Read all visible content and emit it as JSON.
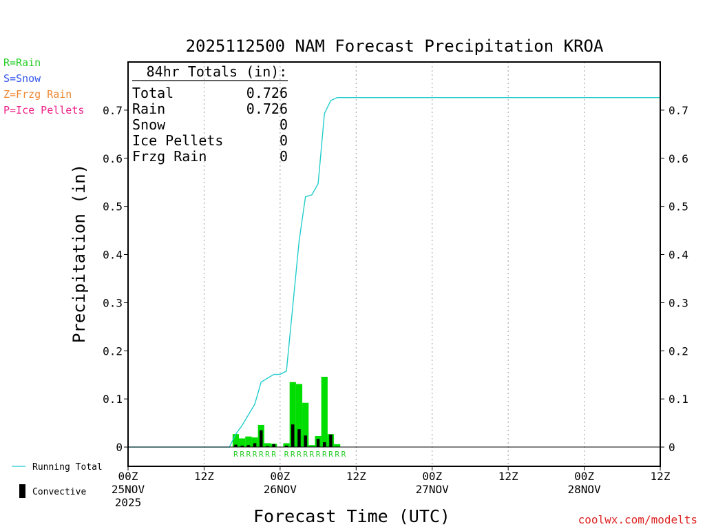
{
  "title": "2025112500 NAM Forecast Precipitation KROA",
  "credit": "coolwx.com/modelts",
  "ptype_legend": [
    {
      "label": "R=Rain",
      "color": "#22cc22"
    },
    {
      "label": "S=Snow",
      "color": "#3355ee"
    },
    {
      "label": "Z=Frzg Rain",
      "color": "#ee8833"
    },
    {
      "label": "P=Ice Pellets",
      "color": "#ee2288"
    }
  ],
  "series_legend": {
    "running_total": {
      "label": "Running Total",
      "color": "#22cccc"
    },
    "convective": {
      "label": "Convective",
      "color": "#000000"
    }
  },
  "totals_box": {
    "header": "84hr Totals (in):",
    "rows": [
      {
        "label": "Total",
        "value": "0.726"
      },
      {
        "label": "Rain",
        "value": "0.726"
      },
      {
        "label": "Snow",
        "value": "0"
      },
      {
        "label": "Ice Pellets",
        "value": "0"
      },
      {
        "label": "Frzg Rain",
        "value": "0"
      }
    ]
  },
  "chart_data": {
    "type": "bar",
    "xlabel": "Forecast Time (UTC)",
    "ylabel": "Precipitation (in)",
    "x_unit": "forecast hour",
    "xlim": [
      0,
      84
    ],
    "ylim": [
      -0.04,
      0.8
    ],
    "yticks": [
      0,
      0.1,
      0.2,
      0.3,
      0.4,
      0.5,
      0.6,
      0.7
    ],
    "ytick_labels": [
      "0",
      "0.1",
      "0.2",
      "0.3",
      "0.4",
      "0.5",
      "0.6",
      "0.7"
    ],
    "xticks": [
      {
        "x": 0,
        "lines": [
          "00Z",
          "25NOV",
          "2025"
        ]
      },
      {
        "x": 12,
        "lines": [
          "12Z"
        ]
      },
      {
        "x": 24,
        "lines": [
          "00Z",
          "26NOV"
        ]
      },
      {
        "x": 36,
        "lines": [
          "12Z"
        ]
      },
      {
        "x": 48,
        "lines": [
          "00Z",
          "27NOV"
        ]
      },
      {
        "x": 60,
        "lines": [
          "12Z"
        ]
      },
      {
        "x": 72,
        "lines": [
          "00Z",
          "28NOV"
        ]
      },
      {
        "x": 84,
        "lines": [
          "12Z"
        ]
      }
    ],
    "grid": "vertical-dotted",
    "series": [
      {
        "name": "Running Total",
        "kind": "line",
        "x": [
          0,
          16,
          17,
          18,
          19,
          20,
          21,
          22,
          23,
          24,
          25,
          26,
          27,
          28,
          29,
          30,
          31,
          32,
          33,
          34,
          35,
          84
        ],
        "y": [
          0,
          0,
          0.027,
          0.045,
          0.067,
          0.089,
          0.135,
          0.143,
          0.151,
          0.151,
          0.158,
          0.293,
          0.428,
          0.52,
          0.524,
          0.547,
          0.693,
          0.72,
          0.726,
          0.726,
          0.726,
          0.726
        ]
      },
      {
        "name": "Rain",
        "kind": "bar",
        "x": [
          17,
          18,
          19,
          20,
          21,
          22,
          23,
          24,
          25,
          26,
          27,
          28,
          29,
          30,
          31,
          32,
          33,
          34
        ],
        "y": [
          0.027,
          0.018,
          0.022,
          0.02,
          0.046,
          0.008,
          0.007,
          0.0,
          0.008,
          0.135,
          0.131,
          0.092,
          0.004,
          0.023,
          0.146,
          0.027,
          0.006,
          0.0
        ]
      },
      {
        "name": "Convective",
        "kind": "bar",
        "x": [
          17,
          18,
          19,
          20,
          21,
          22,
          23,
          24,
          25,
          26,
          27,
          28,
          29,
          30,
          31,
          32,
          33,
          34
        ],
        "y": [
          0.005,
          0.003,
          0.004,
          0.008,
          0.035,
          0.002,
          0.006,
          0.0,
          0.003,
          0.047,
          0.037,
          0.024,
          0.001,
          0.017,
          0.01,
          0.026,
          0.001,
          0.0
        ]
      }
    ],
    "ptype_markers": {
      "text": "R",
      "x": [
        17,
        18,
        19,
        20,
        21,
        22,
        23,
        25,
        26,
        27,
        28,
        29,
        30,
        31,
        32,
        33,
        34
      ]
    }
  }
}
